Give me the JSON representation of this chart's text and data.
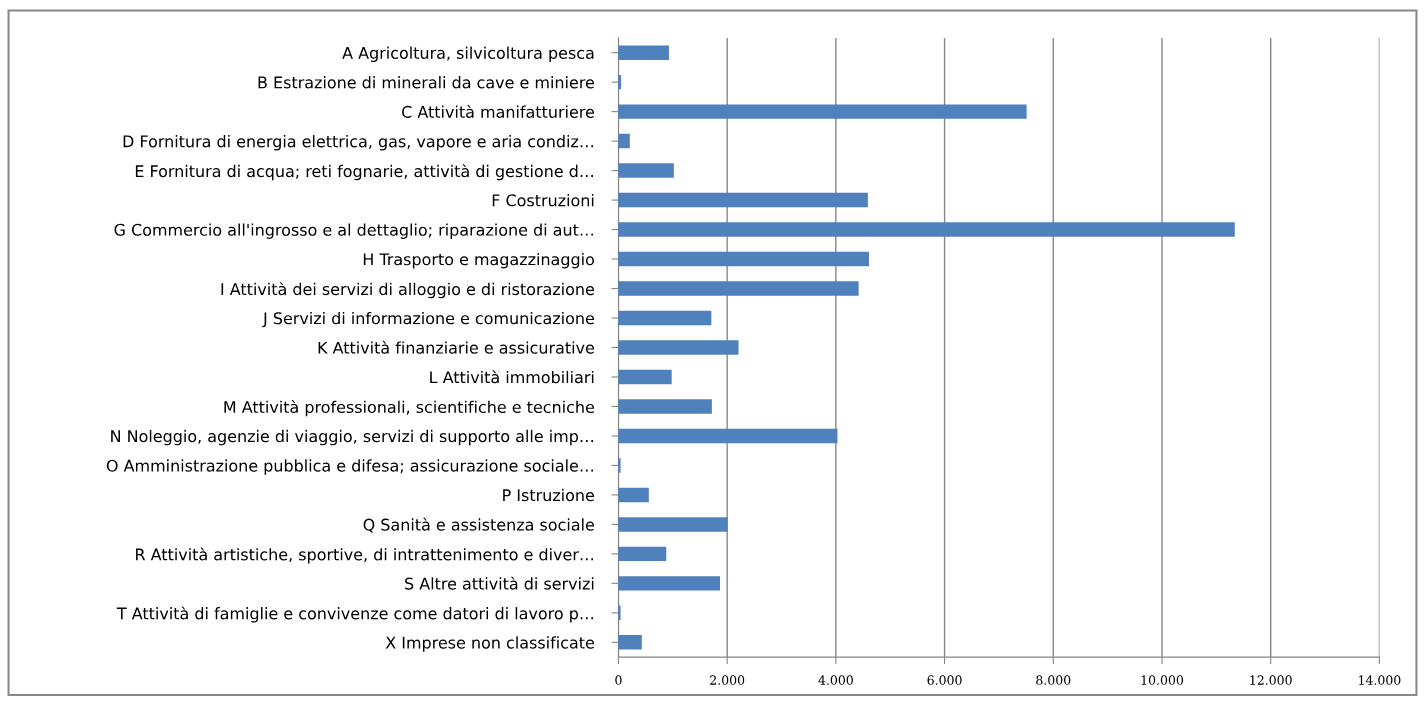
{
  "chart_data": {
    "type": "bar",
    "orientation": "horizontal",
    "categories": [
      "A Agricoltura, silvicoltura pesca",
      "B Estrazione di minerali da cave e miniere",
      "C Attività manifatturiere",
      "D Fornitura di energia elettrica, gas, vapore e aria condiz…",
      "E Fornitura di acqua; reti fognarie, attività di gestione d…",
      "F Costruzioni",
      "G Commercio all'ingrosso e al dettaglio; riparazione di aut…",
      "H Trasporto e magazzinaggio",
      "I Attività dei servizi di alloggio e di ristorazione",
      "J Servizi di informazione e comunicazione",
      "K Attività finanziarie e assicurative",
      "L Attività immobiliari",
      "M Attività professionali, scientifiche e tecniche",
      "N Noleggio, agenzie di viaggio, servizi di supporto alle imp…",
      "O Amministrazione pubblica e difesa; assicurazione sociale…",
      "P Istruzione",
      "Q Sanità e assistenza sociale",
      "R Attività artistiche, sportive, di intrattenimento e diver…",
      "S Altre attività di servizi",
      "T Attività di famiglie e convivenze come datori di lavoro p…",
      "X Imprese non classificate"
    ],
    "values": [
      910,
      30,
      7490,
      190,
      1000,
      4570,
      11320,
      4590,
      4400,
      1690,
      2190,
      960,
      1700,
      4010,
      20,
      540,
      1990,
      860,
      1850,
      20,
      410
    ],
    "color": "#4f81bd",
    "xlim": [
      0,
      14000
    ],
    "xticks": [
      0,
      {
        "value": 2000,
        "label": "2.000"
      },
      {
        "value": 4000,
        "label": "4.000"
      },
      {
        "value": 6000,
        "label": "6.000"
      },
      {
        "value": 8000,
        "label": "8.000"
      },
      {
        "value": 10000,
        "label": "10.000"
      },
      {
        "value": 12000,
        "label": "12.000"
      },
      {
        "value": 14000,
        "label": "14.000"
      }
    ],
    "grid": "x",
    "legend": false
  }
}
